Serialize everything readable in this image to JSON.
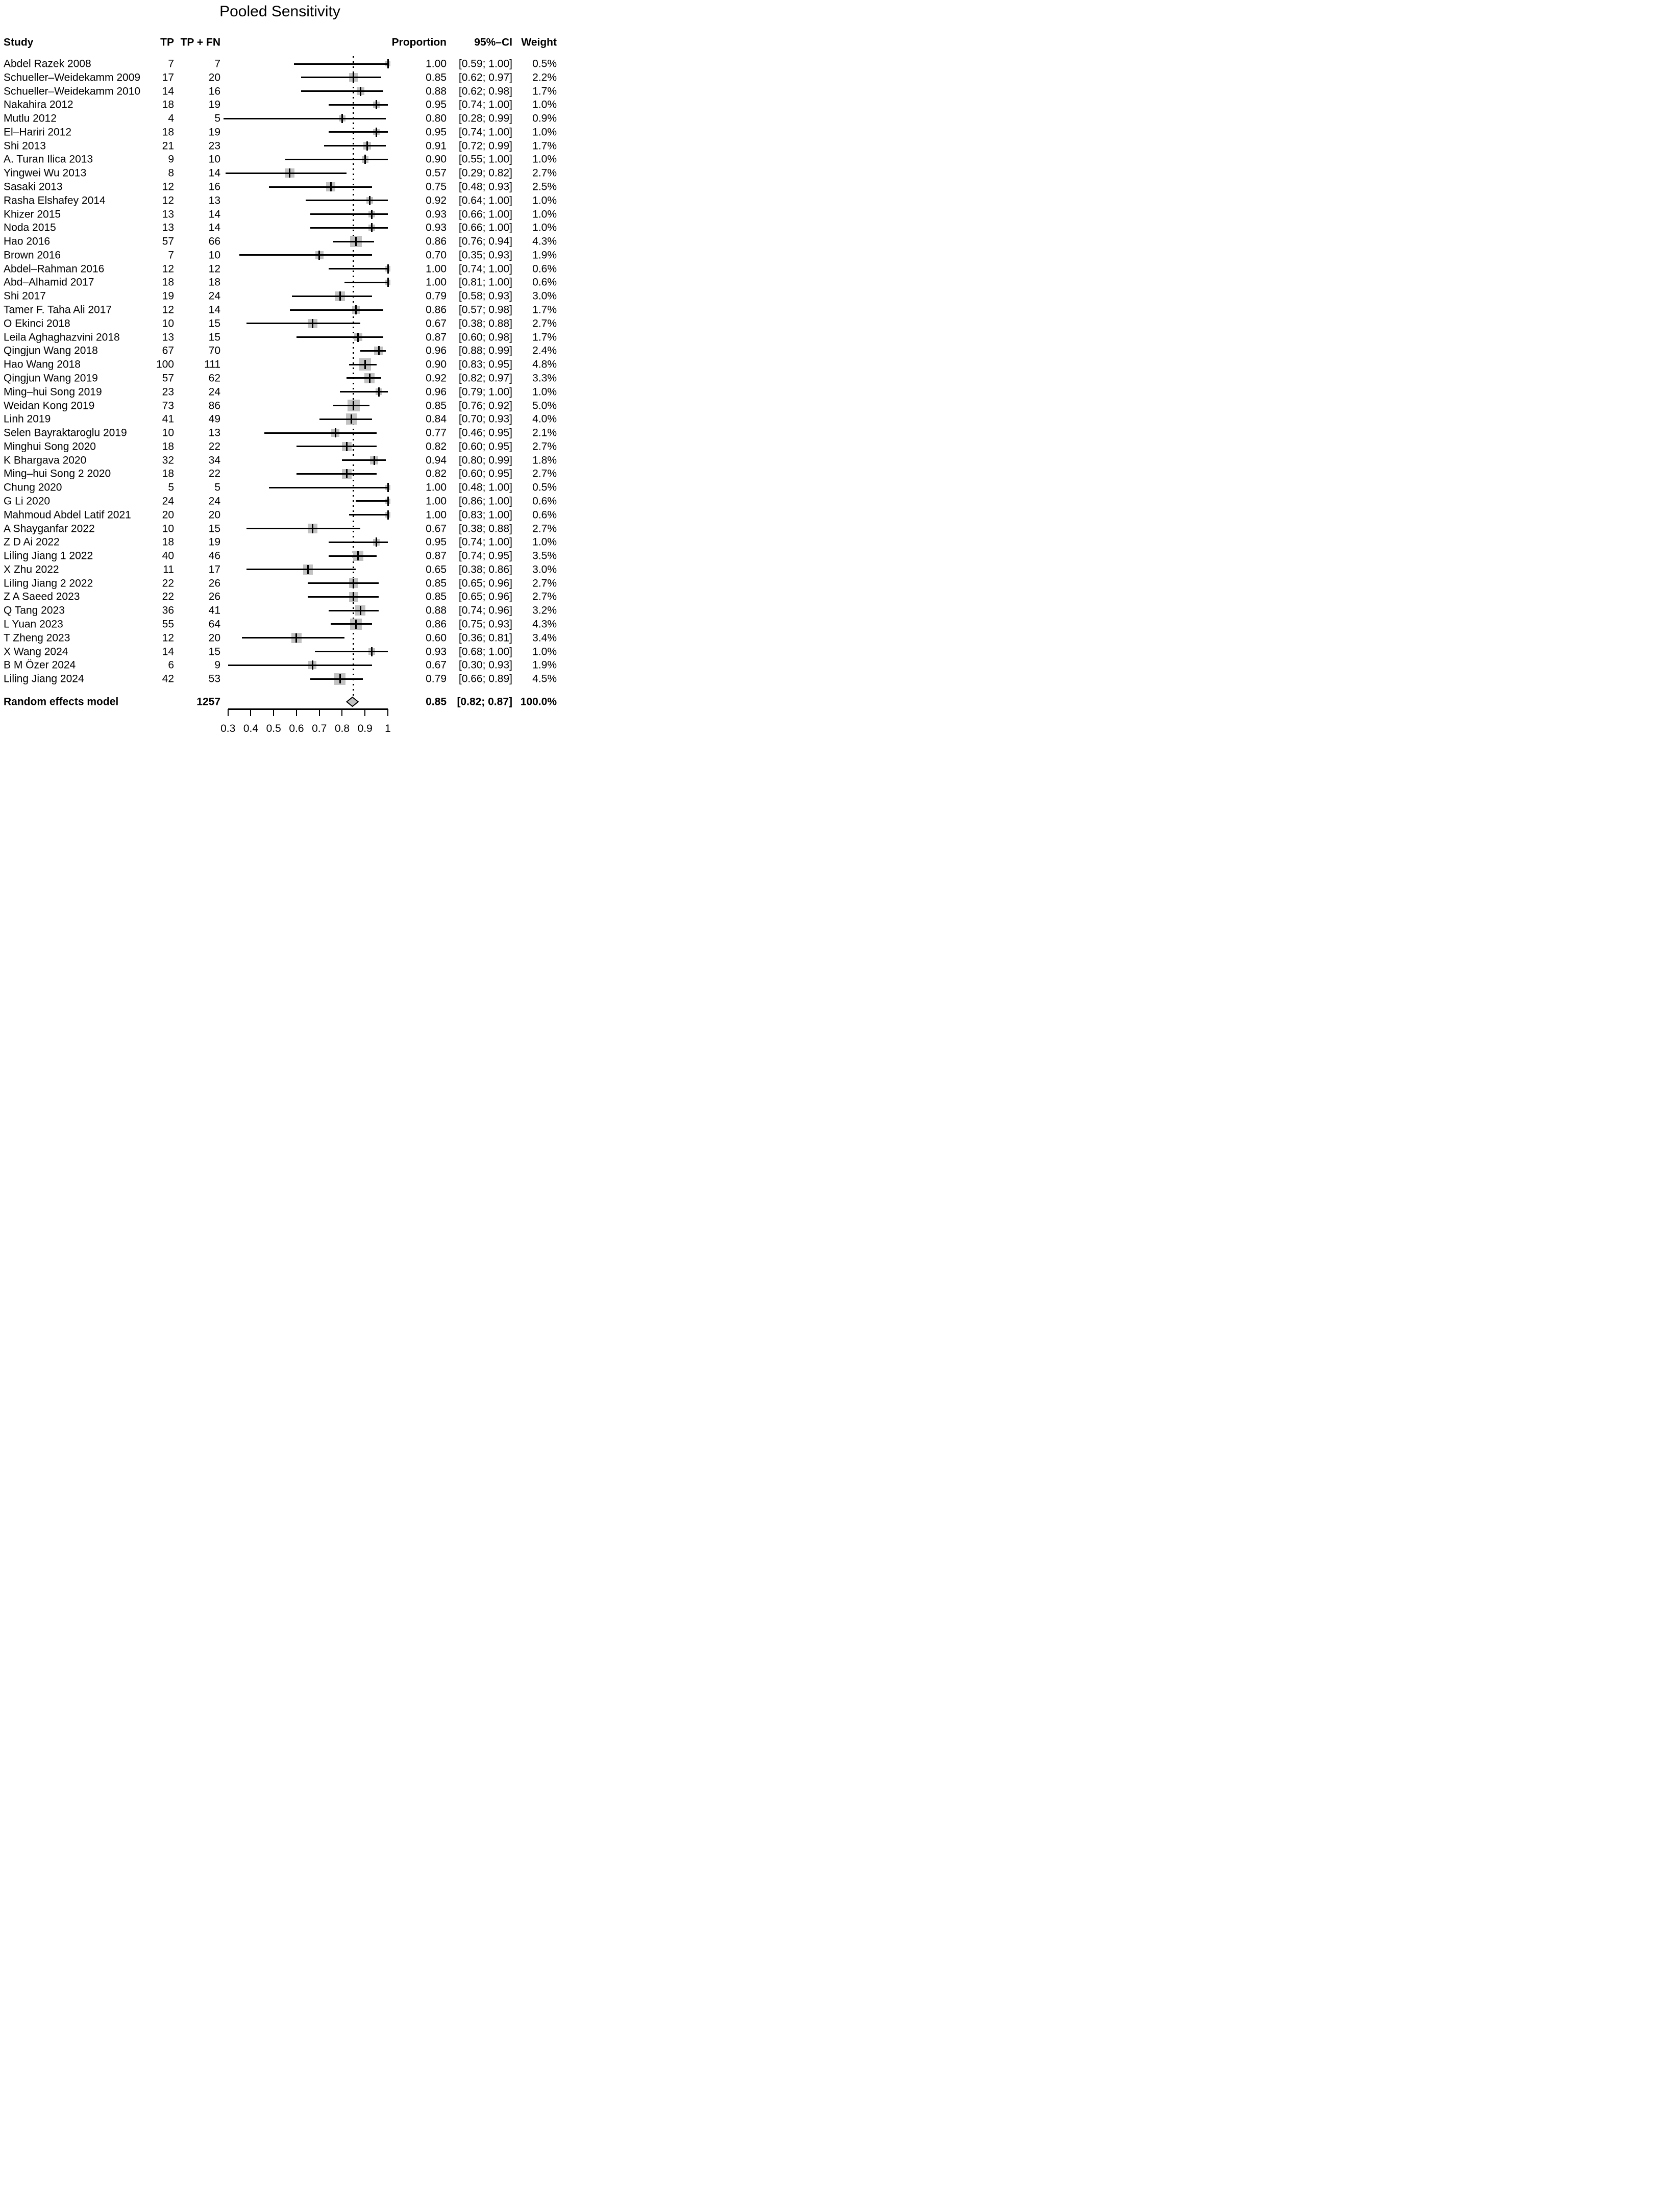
{
  "title": "Pooled Sensitivity",
  "columns": {
    "study": "Study",
    "tp": "TP",
    "tp_fn": "TP + FN",
    "proportion": "Proportion",
    "ci": "95%–CI",
    "weight": "Weight"
  },
  "colors": {
    "marker_fill": "#c2c2c2",
    "line": "#000000",
    "text": "#000000",
    "background": "#ffffff"
  },
  "chart_data": {
    "type": "scatter",
    "variant": "forest-plot",
    "title": "Pooled Sensitivity",
    "x_axis": {
      "min": 0.3,
      "max": 1.0,
      "ticks": [
        0.3,
        0.4,
        0.5,
        0.6,
        0.7,
        0.8,
        0.9,
        1
      ]
    },
    "null_line_at": 0.85,
    "studies": [
      {
        "study": "Abdel Razek 2008",
        "tp": 7,
        "tp_fn": 7,
        "proportion": "1.00",
        "est": 1.0,
        "ci": "[0.59; 1.00]",
        "lo": 0.59,
        "hi": 1.0,
        "weight": "0.5%",
        "weight_pct": 0.5
      },
      {
        "study": "Schueller–Weidekamm 2009",
        "tp": 17,
        "tp_fn": 20,
        "proportion": "0.85",
        "est": 0.85,
        "ci": "[0.62; 0.97]",
        "lo": 0.62,
        "hi": 0.97,
        "weight": "2.2%",
        "weight_pct": 2.2
      },
      {
        "study": "Schueller–Weidekamm 2010",
        "tp": 14,
        "tp_fn": 16,
        "proportion": "0.88",
        "est": 0.88,
        "ci": "[0.62; 0.98]",
        "lo": 0.62,
        "hi": 0.98,
        "weight": "1.7%",
        "weight_pct": 1.7
      },
      {
        "study": "Nakahira 2012",
        "tp": 18,
        "tp_fn": 19,
        "proportion": "0.95",
        "est": 0.95,
        "ci": "[0.74; 1.00]",
        "lo": 0.74,
        "hi": 1.0,
        "weight": "1.0%",
        "weight_pct": 1.0
      },
      {
        "study": "Mutlu 2012",
        "tp": 4,
        "tp_fn": 5,
        "proportion": "0.80",
        "est": 0.8,
        "ci": "[0.28; 0.99]",
        "lo": 0.28,
        "hi": 0.99,
        "weight": "0.9%",
        "weight_pct": 0.9
      },
      {
        "study": "El–Hariri 2012",
        "tp": 18,
        "tp_fn": 19,
        "proportion": "0.95",
        "est": 0.95,
        "ci": "[0.74; 1.00]",
        "lo": 0.74,
        "hi": 1.0,
        "weight": "1.0%",
        "weight_pct": 1.0
      },
      {
        "study": "Shi 2013",
        "tp": 21,
        "tp_fn": 23,
        "proportion": "0.91",
        "est": 0.91,
        "ci": "[0.72; 0.99]",
        "lo": 0.72,
        "hi": 0.99,
        "weight": "1.7%",
        "weight_pct": 1.7
      },
      {
        "study": "A. Turan Ilica 2013",
        "tp": 9,
        "tp_fn": 10,
        "proportion": "0.90",
        "est": 0.9,
        "ci": "[0.55; 1.00]",
        "lo": 0.55,
        "hi": 1.0,
        "weight": "1.0%",
        "weight_pct": 1.0
      },
      {
        "study": "Yingwei Wu 2013",
        "tp": 8,
        "tp_fn": 14,
        "proportion": "0.57",
        "est": 0.57,
        "ci": "[0.29; 0.82]",
        "lo": 0.29,
        "hi": 0.82,
        "weight": "2.7%",
        "weight_pct": 2.7
      },
      {
        "study": "Sasaki 2013",
        "tp": 12,
        "tp_fn": 16,
        "proportion": "0.75",
        "est": 0.75,
        "ci": "[0.48; 0.93]",
        "lo": 0.48,
        "hi": 0.93,
        "weight": "2.5%",
        "weight_pct": 2.5
      },
      {
        "study": "Rasha Elshafey 2014",
        "tp": 12,
        "tp_fn": 13,
        "proportion": "0.92",
        "est": 0.92,
        "ci": "[0.64; 1.00]",
        "lo": 0.64,
        "hi": 1.0,
        "weight": "1.0%",
        "weight_pct": 1.0
      },
      {
        "study": "Khizer 2015",
        "tp": 13,
        "tp_fn": 14,
        "proportion": "0.93",
        "est": 0.93,
        "ci": "[0.66; 1.00]",
        "lo": 0.66,
        "hi": 1.0,
        "weight": "1.0%",
        "weight_pct": 1.0
      },
      {
        "study": "Noda 2015",
        "tp": 13,
        "tp_fn": 14,
        "proportion": "0.93",
        "est": 0.93,
        "ci": "[0.66; 1.00]",
        "lo": 0.66,
        "hi": 1.0,
        "weight": "1.0%",
        "weight_pct": 1.0
      },
      {
        "study": "Hao 2016",
        "tp": 57,
        "tp_fn": 66,
        "proportion": "0.86",
        "est": 0.86,
        "ci": "[0.76; 0.94]",
        "lo": 0.76,
        "hi": 0.94,
        "weight": "4.3%",
        "weight_pct": 4.3
      },
      {
        "study": "Brown 2016",
        "tp": 7,
        "tp_fn": 10,
        "proportion": "0.70",
        "est": 0.7,
        "ci": "[0.35; 0.93]",
        "lo": 0.35,
        "hi": 0.93,
        "weight": "1.9%",
        "weight_pct": 1.9
      },
      {
        "study": "Abdel–Rahman 2016",
        "tp": 12,
        "tp_fn": 12,
        "proportion": "1.00",
        "est": 1.0,
        "ci": "[0.74; 1.00]",
        "lo": 0.74,
        "hi": 1.0,
        "weight": "0.6%",
        "weight_pct": 0.6
      },
      {
        "study": "Abd–Alhamid 2017",
        "tp": 18,
        "tp_fn": 18,
        "proportion": "1.00",
        "est": 1.0,
        "ci": "[0.81; 1.00]",
        "lo": 0.81,
        "hi": 1.0,
        "weight": "0.6%",
        "weight_pct": 0.6
      },
      {
        "study": "Shi 2017",
        "tp": 19,
        "tp_fn": 24,
        "proportion": "0.79",
        "est": 0.79,
        "ci": "[0.58; 0.93]",
        "lo": 0.58,
        "hi": 0.93,
        "weight": "3.0%",
        "weight_pct": 3.0
      },
      {
        "study": "Tamer F. Taha Ali 2017",
        "tp": 12,
        "tp_fn": 14,
        "proportion": "0.86",
        "est": 0.86,
        "ci": "[0.57; 0.98]",
        "lo": 0.57,
        "hi": 0.98,
        "weight": "1.7%",
        "weight_pct": 1.7
      },
      {
        "study": "O Ekinci 2018",
        "tp": 10,
        "tp_fn": 15,
        "proportion": "0.67",
        "est": 0.67,
        "ci": "[0.38; 0.88]",
        "lo": 0.38,
        "hi": 0.88,
        "weight": "2.7%",
        "weight_pct": 2.7
      },
      {
        "study": "Leila Aghaghazvini 2018",
        "tp": 13,
        "tp_fn": 15,
        "proportion": "0.87",
        "est": 0.87,
        "ci": "[0.60; 0.98]",
        "lo": 0.6,
        "hi": 0.98,
        "weight": "1.7%",
        "weight_pct": 1.7
      },
      {
        "study": "Qingjun Wang 2018",
        "tp": 67,
        "tp_fn": 70,
        "proportion": "0.96",
        "est": 0.96,
        "ci": "[0.88; 0.99]",
        "lo": 0.88,
        "hi": 0.99,
        "weight": "2.4%",
        "weight_pct": 2.4
      },
      {
        "study": "Hao Wang 2018",
        "tp": 100,
        "tp_fn": 111,
        "proportion": "0.90",
        "est": 0.9,
        "ci": "[0.83; 0.95]",
        "lo": 0.83,
        "hi": 0.95,
        "weight": "4.8%",
        "weight_pct": 4.8
      },
      {
        "study": "Qingjun Wang 2019",
        "tp": 57,
        "tp_fn": 62,
        "proportion": "0.92",
        "est": 0.92,
        "ci": "[0.82; 0.97]",
        "lo": 0.82,
        "hi": 0.97,
        "weight": "3.3%",
        "weight_pct": 3.3
      },
      {
        "study": "Ming–hui Song 2019",
        "tp": 23,
        "tp_fn": 24,
        "proportion": "0.96",
        "est": 0.96,
        "ci": "[0.79; 1.00]",
        "lo": 0.79,
        "hi": 1.0,
        "weight": "1.0%",
        "weight_pct": 1.0
      },
      {
        "study": "Weidan Kong 2019",
        "tp": 73,
        "tp_fn": 86,
        "proportion": "0.85",
        "est": 0.85,
        "ci": "[0.76; 0.92]",
        "lo": 0.76,
        "hi": 0.92,
        "weight": "5.0%",
        "weight_pct": 5.0
      },
      {
        "study": "Linh 2019",
        "tp": 41,
        "tp_fn": 49,
        "proportion": "0.84",
        "est": 0.84,
        "ci": "[0.70; 0.93]",
        "lo": 0.7,
        "hi": 0.93,
        "weight": "4.0%",
        "weight_pct": 4.0
      },
      {
        "study": "Selen Bayraktaroglu 2019",
        "tp": 10,
        "tp_fn": 13,
        "proportion": "0.77",
        "est": 0.77,
        "ci": "[0.46; 0.95]",
        "lo": 0.46,
        "hi": 0.95,
        "weight": "2.1%",
        "weight_pct": 2.1
      },
      {
        "study": "Minghui Song 2020",
        "tp": 18,
        "tp_fn": 22,
        "proportion": "0.82",
        "est": 0.82,
        "ci": "[0.60; 0.95]",
        "lo": 0.6,
        "hi": 0.95,
        "weight": "2.7%",
        "weight_pct": 2.7
      },
      {
        "study": "K Bhargava 2020",
        "tp": 32,
        "tp_fn": 34,
        "proportion": "0.94",
        "est": 0.94,
        "ci": "[0.80; 0.99]",
        "lo": 0.8,
        "hi": 0.99,
        "weight": "1.8%",
        "weight_pct": 1.8
      },
      {
        "study": "Ming–hui Song 2 2020",
        "tp": 18,
        "tp_fn": 22,
        "proportion": "0.82",
        "est": 0.82,
        "ci": "[0.60; 0.95]",
        "lo": 0.6,
        "hi": 0.95,
        "weight": "2.7%",
        "weight_pct": 2.7
      },
      {
        "study": "Chung 2020",
        "tp": 5,
        "tp_fn": 5,
        "proportion": "1.00",
        "est": 1.0,
        "ci": "[0.48; 1.00]",
        "lo": 0.48,
        "hi": 1.0,
        "weight": "0.5%",
        "weight_pct": 0.5
      },
      {
        "study": "G Li 2020",
        "tp": 24,
        "tp_fn": 24,
        "proportion": "1.00",
        "est": 1.0,
        "ci": "[0.86; 1.00]",
        "lo": 0.86,
        "hi": 1.0,
        "weight": "0.6%",
        "weight_pct": 0.6
      },
      {
        "study": "Mahmoud Abdel Latif 2021",
        "tp": 20,
        "tp_fn": 20,
        "proportion": "1.00",
        "est": 1.0,
        "ci": "[0.83; 1.00]",
        "lo": 0.83,
        "hi": 1.0,
        "weight": "0.6%",
        "weight_pct": 0.6
      },
      {
        "study": "A Shayganfar 2022",
        "tp": 10,
        "tp_fn": 15,
        "proportion": "0.67",
        "est": 0.67,
        "ci": "[0.38; 0.88]",
        "lo": 0.38,
        "hi": 0.88,
        "weight": "2.7%",
        "weight_pct": 2.7
      },
      {
        "study": "Z D Ai 2022",
        "tp": 18,
        "tp_fn": 19,
        "proportion": "0.95",
        "est": 0.95,
        "ci": "[0.74; 1.00]",
        "lo": 0.74,
        "hi": 1.0,
        "weight": "1.0%",
        "weight_pct": 1.0
      },
      {
        "study": "Liling Jiang 1 2022",
        "tp": 40,
        "tp_fn": 46,
        "proportion": "0.87",
        "est": 0.87,
        "ci": "[0.74; 0.95]",
        "lo": 0.74,
        "hi": 0.95,
        "weight": "3.5%",
        "weight_pct": 3.5
      },
      {
        "study": "X Zhu 2022",
        "tp": 11,
        "tp_fn": 17,
        "proportion": "0.65",
        "est": 0.65,
        "ci": "[0.38; 0.86]",
        "lo": 0.38,
        "hi": 0.86,
        "weight": "3.0%",
        "weight_pct": 3.0
      },
      {
        "study": "Liling Jiang 2 2022",
        "tp": 22,
        "tp_fn": 26,
        "proportion": "0.85",
        "est": 0.85,
        "ci": "[0.65; 0.96]",
        "lo": 0.65,
        "hi": 0.96,
        "weight": "2.7%",
        "weight_pct": 2.7
      },
      {
        "study": "Z A Saeed 2023",
        "tp": 22,
        "tp_fn": 26,
        "proportion": "0.85",
        "est": 0.85,
        "ci": "[0.65; 0.96]",
        "lo": 0.65,
        "hi": 0.96,
        "weight": "2.7%",
        "weight_pct": 2.7
      },
      {
        "study": "Q Tang 2023",
        "tp": 36,
        "tp_fn": 41,
        "proportion": "0.88",
        "est": 0.88,
        "ci": "[0.74; 0.96]",
        "lo": 0.74,
        "hi": 0.96,
        "weight": "3.2%",
        "weight_pct": 3.2
      },
      {
        "study": "L Yuan 2023",
        "tp": 55,
        "tp_fn": 64,
        "proportion": "0.86",
        "est": 0.86,
        "ci": "[0.75; 0.93]",
        "lo": 0.75,
        "hi": 0.93,
        "weight": "4.3%",
        "weight_pct": 4.3
      },
      {
        "study": "T Zheng 2023",
        "tp": 12,
        "tp_fn": 20,
        "proportion": "0.60",
        "est": 0.6,
        "ci": "[0.36; 0.81]",
        "lo": 0.36,
        "hi": 0.81,
        "weight": "3.4%",
        "weight_pct": 3.4
      },
      {
        "study": "X Wang 2024",
        "tp": 14,
        "tp_fn": 15,
        "proportion": "0.93",
        "est": 0.93,
        "ci": "[0.68; 1.00]",
        "lo": 0.68,
        "hi": 1.0,
        "weight": "1.0%",
        "weight_pct": 1.0
      },
      {
        "study": "B M Özer 2024",
        "tp": 6,
        "tp_fn": 9,
        "proportion": "0.67",
        "est": 0.67,
        "ci": "[0.30; 0.93]",
        "lo": 0.3,
        "hi": 0.93,
        "weight": "1.9%",
        "weight_pct": 1.9
      },
      {
        "study": "Liling Jiang 2024",
        "tp": 42,
        "tp_fn": 53,
        "proportion": "0.79",
        "est": 0.79,
        "ci": "[0.66; 0.89]",
        "lo": 0.66,
        "hi": 0.89,
        "weight": "4.5%",
        "weight_pct": 4.5
      }
    ],
    "pooled": {
      "label": "Random effects model",
      "tp_fn_total": "1257",
      "proportion": "0.85",
      "est": 0.85,
      "ci": "[0.82; 0.87]",
      "lo": 0.82,
      "hi": 0.87,
      "weight": "100.0%"
    }
  }
}
